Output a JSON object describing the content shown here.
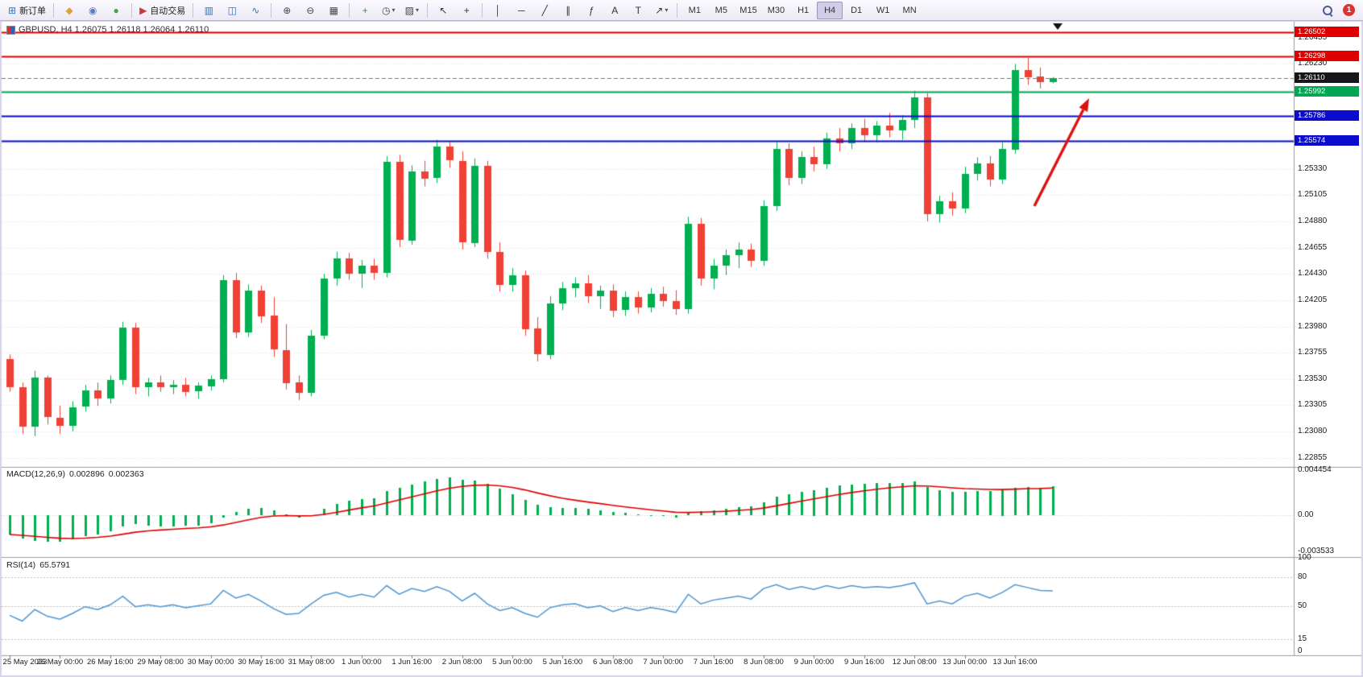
{
  "toolbar": {
    "new_order_label": "新订单",
    "autotrade_label": "自动交易",
    "badge_count": "1",
    "active_timeframe": "H4",
    "items": [
      {
        "t": "btn",
        "name": "new-order-button",
        "glyph": "⊞",
        "glyph_color": "#2E79C6",
        "label": "新订单"
      },
      {
        "t": "sep"
      },
      {
        "t": "btn",
        "name": "metaquotes-button",
        "glyph": "◆",
        "glyph_color": "#E2A23B"
      },
      {
        "t": "btn",
        "name": "profile-button",
        "glyph": "◉",
        "glyph_color": "#5878C8"
      },
      {
        "t": "btn",
        "name": "community-button",
        "glyph": "●",
        "glyph_color": "#44A04E"
      },
      {
        "t": "sep"
      },
      {
        "t": "btn",
        "name": "autotrade-button",
        "glyph": "▶",
        "glyph_color": "#C43B3B",
        "label": "自动交易"
      },
      {
        "t": "sep"
      },
      {
        "t": "btn",
        "name": "bar-chart-button",
        "glyph": "▥",
        "glyph_color": "#3A6FB0"
      },
      {
        "t": "btn",
        "name": "candlestick-chart-button",
        "glyph": "◫",
        "glyph_color": "#3A6FB0"
      },
      {
        "t": "btn",
        "name": "line-chart-button",
        "glyph": "∿",
        "glyph_color": "#3A6FB0"
      },
      {
        "t": "sep"
      },
      {
        "t": "btn",
        "name": "zoom-in-button",
        "glyph": "⊕",
        "glyph_color": "#45454F"
      },
      {
        "t": "btn",
        "name": "zoom-out-button",
        "glyph": "⊖",
        "glyph_color": "#45454F"
      },
      {
        "t": "btn",
        "name": "tile-windows-button",
        "glyph": "▦",
        "glyph_color": "#45454F"
      },
      {
        "t": "sep"
      },
      {
        "t": "btn",
        "name": "indicators-button",
        "glyph": "+",
        "glyph_color": "#2F9440"
      },
      {
        "t": "btn",
        "name": "periods-button",
        "glyph": "◷",
        "glyph_color": "#45454F",
        "caret": true
      },
      {
        "t": "btn",
        "name": "templates-button",
        "glyph": "▨",
        "glyph_color": "#45454F",
        "caret": true
      },
      {
        "t": "sep"
      },
      {
        "t": "btn",
        "name": "cursor-button",
        "glyph": "↖",
        "glyph_color": "#333333"
      },
      {
        "t": "btn",
        "name": "crosshair-button",
        "glyph": "+",
        "glyph_color": "#333333"
      },
      {
        "t": "sep"
      },
      {
        "t": "btn",
        "name": "vertical-line-button",
        "glyph": "│",
        "glyph_color": "#333333"
      },
      {
        "t": "btn",
        "name": "horizontal-line-button",
        "glyph": "─",
        "glyph_color": "#333333"
      },
      {
        "t": "btn",
        "name": "trendline-button",
        "glyph": "╱",
        "glyph_color": "#333333"
      },
      {
        "t": "btn",
        "name": "channel-button",
        "glyph": "∥",
        "glyph_color": "#333333"
      },
      {
        "t": "btn",
        "name": "fibonacci-button",
        "glyph": "ƒ",
        "glyph_color": "#333333"
      },
      {
        "t": "btn",
        "name": "text-button",
        "glyph": "A",
        "glyph_color": "#333333"
      },
      {
        "t": "btn",
        "name": "label-button",
        "glyph": "T",
        "glyph_color": "#333333"
      },
      {
        "t": "btn",
        "name": "arrows-button",
        "glyph": "↗",
        "glyph_color": "#333333",
        "caret": true
      },
      {
        "t": "sep"
      },
      {
        "t": "tf",
        "name": "timeframe-m1-button",
        "label": "M1"
      },
      {
        "t": "tf",
        "name": "timeframe-m5-button",
        "label": "M5"
      },
      {
        "t": "tf",
        "name": "timeframe-m15-button",
        "label": "M15"
      },
      {
        "t": "tf",
        "name": "timeframe-m30-button",
        "label": "M30"
      },
      {
        "t": "tf",
        "name": "timeframe-h1-button",
        "label": "H1"
      },
      {
        "t": "tf",
        "name": "timeframe-h4-button",
        "label": "H4"
      },
      {
        "t": "tf",
        "name": "timeframe-d1-button",
        "label": "D1"
      },
      {
        "t": "tf",
        "name": "timeframe-w1-button",
        "label": "W1"
      },
      {
        "t": "tf",
        "name": "timeframe-mn-button",
        "label": "MN"
      },
      {
        "t": "spacer"
      },
      {
        "t": "search",
        "name": "search-icon"
      },
      {
        "t": "badge",
        "name": "notification-badge"
      }
    ]
  },
  "chart": {
    "title_line": "GBPUSD, H4 1.26075 1.26118 1.26064 1.26110",
    "levels": [
      {
        "label": "1.26502",
        "value": 1.26502,
        "line_color": "#DE0000",
        "tag_bg": "#DE0000",
        "style": "solid",
        "width": 2
      },
      {
        "label": "1.26298",
        "value": 1.26298,
        "line_color": "#DE0000",
        "tag_bg": "#DE0000",
        "style": "solid",
        "width": 2
      },
      {
        "label": "1.26110",
        "value": 1.2611,
        "line_color": "#777777",
        "tag_bg": "#15151A",
        "style": "dashed",
        "width": 1
      },
      {
        "label": "1.25992",
        "value": 1.25992,
        "line_color": "#00A651",
        "tag_bg": "#00A651",
        "style": "solid",
        "width": 2
      },
      {
        "label": "1.25786",
        "value": 1.25786,
        "line_color": "#0B0BCE",
        "tag_bg": "#0B0BCE",
        "style": "solid",
        "width": 2
      },
      {
        "label": "1.25574",
        "value": 1.25574,
        "line_color": "#0B0BCE",
        "tag_bg": "#0B0BCE",
        "style": "solid",
        "width": 2
      }
    ],
    "price_axis_labels": [
      {
        "label": "1.26455",
        "value": 1.26455
      },
      {
        "label": "1.26230",
        "value": 1.2623
      },
      {
        "label": "1.25330",
        "value": 1.2533
      },
      {
        "label": "1.25105",
        "value": 1.25105
      },
      {
        "label": "1.24880",
        "value": 1.2488
      },
      {
        "label": "1.24655",
        "value": 1.24655
      },
      {
        "label": "1.24430",
        "value": 1.2443
      },
      {
        "label": "1.24205",
        "value": 1.24205
      },
      {
        "label": "1.23980",
        "value": 1.2398
      },
      {
        "label": "1.23755",
        "value": 1.23755
      },
      {
        "label": "1.23530",
        "value": 1.2353
      },
      {
        "label": "1.23305",
        "value": 1.23305
      },
      {
        "label": "1.23080",
        "value": 1.2308
      },
      {
        "label": "1.22855",
        "value": 1.22855
      }
    ],
    "time_axis_labels": [
      "25 May 2023",
      "26 May 00:00",
      "26 May 16:00",
      "29 May 08:00",
      "30 May 00:00",
      "30 May 16:00",
      "31 May 08:00",
      "1 Jun 00:00",
      "1 Jun 16:00",
      "2 Jun 08:00",
      "5 Jun 00:00",
      "5 Jun 16:00",
      "6 Jun 08:00",
      "7 Jun 00:00",
      "7 Jun 16:00",
      "8 Jun 08:00",
      "9 Jun 00:00",
      "9 Jun 16:00",
      "12 Jun 08:00",
      "13 Jun 00:00",
      "13 Jun 16:00"
    ]
  },
  "chart_data": {
    "type": "candlestick",
    "symbol": "GBPUSD",
    "timeframe": "H4",
    "ohlc_current": {
      "open": "1.26075",
      "high": "1.26118",
      "low": "1.26064",
      "close": "1.26110"
    },
    "up_color": "#00B050",
    "down_color": "#EF4135",
    "candles": [
      [
        1.237,
        1.2374,
        1.2342,
        1.2346
      ],
      [
        1.2346,
        1.235,
        1.2306,
        1.2312
      ],
      [
        1.2312,
        1.236,
        1.2304,
        1.2354
      ],
      [
        1.2354,
        1.2356,
        1.2314,
        1.232
      ],
      [
        1.232,
        1.233,
        1.2306,
        1.2313
      ],
      [
        1.2313,
        1.2334,
        1.2308,
        1.2329
      ],
      [
        1.2329,
        1.2348,
        1.2325,
        1.2343
      ],
      [
        1.2343,
        1.235,
        1.233,
        1.2336
      ],
      [
        1.2336,
        1.2356,
        1.2332,
        1.2352
      ],
      [
        1.2352,
        1.2402,
        1.2348,
        1.2397
      ],
      [
        1.2397,
        1.2401,
        1.234,
        1.2346
      ],
      [
        1.2346,
        1.2354,
        1.2338,
        1.235
      ],
      [
        1.235,
        1.2356,
        1.2342,
        1.2346
      ],
      [
        1.2346,
        1.2352,
        1.234,
        1.2348
      ],
      [
        1.2348,
        1.2354,
        1.2338,
        1.2342
      ],
      [
        1.2342,
        1.235,
        1.2336,
        1.2347
      ],
      [
        1.2347,
        1.2356,
        1.2343,
        1.2353
      ],
      [
        1.2353,
        1.2442,
        1.235,
        1.2438
      ],
      [
        1.2438,
        1.2444,
        1.2388,
        1.2393
      ],
      [
        1.2393,
        1.2434,
        1.2389,
        1.2429
      ],
      [
        1.2429,
        1.2433,
        1.2401,
        1.2407
      ],
      [
        1.2407,
        1.2423,
        1.2372,
        1.2378
      ],
      [
        1.2378,
        1.24,
        1.2344,
        1.235
      ],
      [
        1.235,
        1.2356,
        1.2335,
        1.2341
      ],
      [
        1.2341,
        1.2395,
        1.2338,
        1.239
      ],
      [
        1.239,
        1.2443,
        1.2387,
        1.2439
      ],
      [
        1.2439,
        1.2462,
        1.2433,
        1.2456
      ],
      [
        1.2456,
        1.2461,
        1.2438,
        1.2443
      ],
      [
        1.2443,
        1.2455,
        1.2431,
        1.245
      ],
      [
        1.245,
        1.2456,
        1.2438,
        1.2444
      ],
      [
        1.2444,
        1.2544,
        1.244,
        1.2539
      ],
      [
        1.2539,
        1.2545,
        1.2466,
        1.2472
      ],
      [
        1.2472,
        1.2536,
        1.2468,
        1.2531
      ],
      [
        1.2531,
        1.254,
        1.2518,
        1.2525
      ],
      [
        1.2525,
        1.2558,
        1.2521,
        1.2552
      ],
      [
        1.2552,
        1.2557,
        1.2534,
        1.254
      ],
      [
        1.254,
        1.2548,
        1.2464,
        1.247
      ],
      [
        1.247,
        1.2542,
        1.2466,
        1.2536
      ],
      [
        1.2536,
        1.254,
        1.2456,
        1.2462
      ],
      [
        1.2462,
        1.247,
        1.2428,
        1.2434
      ],
      [
        1.2434,
        1.2448,
        1.2428,
        1.2442
      ],
      [
        1.2442,
        1.2446,
        1.239,
        1.2396
      ],
      [
        1.2396,
        1.2406,
        1.2368,
        1.2374
      ],
      [
        1.2374,
        1.2424,
        1.237,
        1.2418
      ],
      [
        1.2418,
        1.2436,
        1.2412,
        1.2431
      ],
      [
        1.2431,
        1.244,
        1.2423,
        1.2435
      ],
      [
        1.2435,
        1.2442,
        1.2418,
        1.2424
      ],
      [
        1.2424,
        1.2433,
        1.2413,
        1.2429
      ],
      [
        1.2429,
        1.2434,
        1.2406,
        1.2412
      ],
      [
        1.2412,
        1.2428,
        1.2407,
        1.2423
      ],
      [
        1.2423,
        1.2428,
        1.2409,
        1.2414
      ],
      [
        1.2414,
        1.2431,
        1.241,
        1.2426
      ],
      [
        1.2426,
        1.2432,
        1.2415,
        1.242
      ],
      [
        1.242,
        1.2429,
        1.2408,
        1.2413
      ],
      [
        1.2413,
        1.2492,
        1.2409,
        1.2486
      ],
      [
        1.2486,
        1.2491,
        1.2433,
        1.2439
      ],
      [
        1.2439,
        1.2456,
        1.243,
        1.245
      ],
      [
        1.245,
        1.2464,
        1.2442,
        1.2459
      ],
      [
        1.2459,
        1.247,
        1.2448,
        1.2464
      ],
      [
        1.2464,
        1.2469,
        1.2449,
        1.2454
      ],
      [
        1.2454,
        1.2506,
        1.245,
        1.2501
      ],
      [
        1.2501,
        1.2556,
        1.2497,
        1.255
      ],
      [
        1.255,
        1.2555,
        1.2519,
        1.2525
      ],
      [
        1.2525,
        1.2548,
        1.252,
        1.2543
      ],
      [
        1.2543,
        1.2552,
        1.2531,
        1.2537
      ],
      [
        1.2537,
        1.2564,
        1.2533,
        1.2559
      ],
      [
        1.2559,
        1.2568,
        1.2548,
        1.2555
      ],
      [
        1.2555,
        1.2572,
        1.255,
        1.2568
      ],
      [
        1.2568,
        1.2576,
        1.2556,
        1.2562
      ],
      [
        1.2562,
        1.2574,
        1.2556,
        1.257
      ],
      [
        1.257,
        1.2581,
        1.256,
        1.2566
      ],
      [
        1.2566,
        1.2579,
        1.2558,
        1.2575
      ],
      [
        1.2575,
        1.26,
        1.2568,
        1.2594
      ],
      [
        1.2594,
        1.2598,
        1.2488,
        1.2494
      ],
      [
        1.2494,
        1.251,
        1.2487,
        1.2505
      ],
      [
        1.2505,
        1.2513,
        1.2493,
        1.2499
      ],
      [
        1.2499,
        1.2535,
        1.2495,
        1.2529
      ],
      [
        1.2529,
        1.2543,
        1.2523,
        1.2538
      ],
      [
        1.2538,
        1.2544,
        1.2518,
        1.2524
      ],
      [
        1.2524,
        1.2556,
        1.252,
        1.255
      ],
      [
        1.255,
        1.2623,
        1.2546,
        1.2618
      ],
      [
        1.2618,
        1.2628,
        1.2605,
        1.2612
      ],
      [
        1.2612,
        1.262,
        1.2602,
        1.26075
      ],
      [
        1.26075,
        1.26118,
        1.26064,
        1.2611
      ]
    ],
    "macd": {
      "label": "MACD(12,26,9)",
      "value_main": "0.002896",
      "value_signal": "0.002363",
      "histogram_color": "#00B050",
      "signal_color": "#E00000",
      "axis": [
        {
          "label": "0.004454",
          "value": 0.004454
        },
        {
          "label": "0.00",
          "value": 0
        },
        {
          "label": "-0.003533",
          "value": -0.003533
        }
      ],
      "values": [
        -0.0019,
        -0.0023,
        -0.0025,
        -0.0026,
        -0.0026,
        -0.0024,
        -0.0021,
        -0.0019,
        -0.0016,
        -0.0011,
        -0.0009,
        -0.001,
        -0.0011,
        -0.0011,
        -0.001,
        -0.001,
        -0.0008,
        -0.0002,
        0.0003,
        0.0006,
        0.0007,
        0.0005,
        0.0001,
        -0.0002,
        0.0,
        0.0006,
        0.0011,
        0.0014,
        0.0016,
        0.0017,
        0.0024,
        0.0027,
        0.003,
        0.0033,
        0.0036,
        0.0037,
        0.0035,
        0.0034,
        0.0031,
        0.0026,
        0.0021,
        0.0015,
        0.001,
        0.0008,
        0.0007,
        0.0007,
        0.0006,
        0.0005,
        0.0003,
        0.0002,
        0.0001,
        0.0,
        -0.0001,
        -0.0002,
        0.0002,
        0.0004,
        0.0005,
        0.0006,
        0.0008,
        0.0009,
        0.0013,
        0.0018,
        0.0021,
        0.0023,
        0.0025,
        0.0027,
        0.0029,
        0.003,
        0.0031,
        0.0032,
        0.0032,
        0.0032,
        0.0033,
        0.0028,
        0.0025,
        0.0023,
        0.0023,
        0.0024,
        0.0024,
        0.0025,
        0.0027,
        0.0028,
        0.0027,
        0.002896
      ]
    },
    "rsi": {
      "label": "RSI(14)",
      "value": "65.5791",
      "line_color": "#4E96D1",
      "axis": [
        {
          "label": "100",
          "value": 100
        },
        {
          "label": "80",
          "value": 80
        },
        {
          "label": "50",
          "value": 50
        },
        {
          "label": "15",
          "value": 15
        },
        {
          "label": "0",
          "value": 0
        }
      ],
      "levels": [
        80,
        50,
        15
      ],
      "values": [
        40,
        34,
        46,
        39,
        36,
        42,
        49,
        46,
        51,
        60,
        49,
        51,
        49,
        51,
        48,
        50,
        52,
        66,
        58,
        62,
        55,
        47,
        41,
        42,
        52,
        61,
        64,
        59,
        62,
        59,
        71,
        62,
        68,
        65,
        70,
        65,
        55,
        63,
        52,
        45,
        48,
        42,
        38,
        48,
        51,
        52,
        48,
        50,
        44,
        48,
        45,
        48,
        46,
        43,
        62,
        52,
        56,
        58,
        60,
        57,
        68,
        72,
        67,
        70,
        67,
        71,
        68,
        71,
        69,
        70,
        69,
        71,
        74,
        52,
        55,
        52,
        60,
        63,
        58,
        64,
        72,
        69,
        66,
        65.5791
      ]
    },
    "annotations": {
      "arrow": {
        "color": "#E01010",
        "from": [
          1284,
          256
        ],
        "to": [
          1352,
          122
        ]
      }
    }
  }
}
